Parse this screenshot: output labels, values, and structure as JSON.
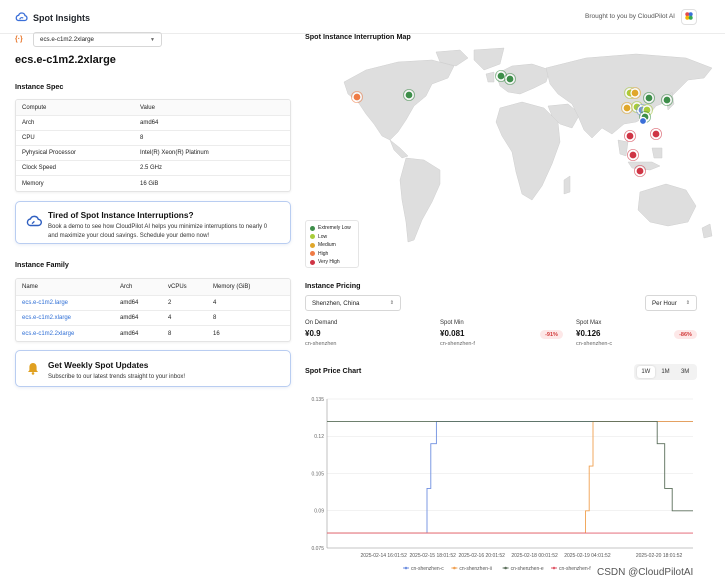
{
  "header": {
    "app_name": "Spot Insights",
    "brought_by": "Brought to you by CloudPilot AI",
    "brand_color": "#3b6fd8"
  },
  "instance_select": {
    "icon": "code-brackets-icon",
    "value": "ecs.e-c1m2.2xlarge"
  },
  "instance_title": "ecs.e-c1m2.2xlarge",
  "spec": {
    "title": "Instance Spec",
    "header": {
      "key": "Compute",
      "value": "Value"
    },
    "rows": [
      {
        "key": "Arch",
        "value": "amd64"
      },
      {
        "key": "CPU",
        "value": "8"
      },
      {
        "key": "Pyhysical Processor",
        "value": "Intel(R) Xeon(R) Platinum"
      },
      {
        "key": "Clock Speed",
        "value": "2.5 GHz"
      },
      {
        "key": "Memory",
        "value": "16 GiB"
      }
    ]
  },
  "promo_demo": {
    "icon": "cloud-gauge-icon",
    "title": "Tired of Spot Instance Interruptions?",
    "line1": "Book a demo to see how CloudPilot AI helps you minimize interruptions to nearly 0",
    "line2": "and maximize your cloud savings. Schedule your demo now!"
  },
  "family": {
    "title": "Instance Family",
    "columns": [
      "Name",
      "Arch",
      "vCPUs",
      "Memory (GiB)"
    ],
    "rows": [
      [
        "ecs.e-c1m2.large",
        "amd64",
        "2",
        "4"
      ],
      [
        "ecs.e-c1m2.xlarge",
        "amd64",
        "4",
        "8"
      ],
      [
        "ecs.e-c1m2.2xlarge",
        "amd64",
        "8",
        "16"
      ]
    ]
  },
  "promo_updates": {
    "icon": "bell-icon",
    "title": "Get Weekly Spot Updates",
    "desc": "Subscribe to our latest trends straight to your inbox!"
  },
  "map": {
    "title": "Spot Instance Interruption Map",
    "legend": [
      {
        "label": "Extremely Low",
        "color": "#3e8e4a"
      },
      {
        "label": "Low",
        "color": "#a8cc3a"
      },
      {
        "label": "Medium",
        "color": "#e0a72b"
      },
      {
        "label": "High",
        "color": "#ef7b45"
      },
      {
        "label": "Very High",
        "color": "#cf3545"
      }
    ]
  },
  "pricing": {
    "title": "Instance Pricing",
    "region": "Shenzhen, China",
    "unit": "Per Hour",
    "on_demand": {
      "label": "On Demand",
      "value": "¥0.9",
      "zone": "cn-shenzhen"
    },
    "spot_min": {
      "label": "Spot Min",
      "value": "¥0.081",
      "zone": "cn-shenzhen-f",
      "pct": "-91%"
    },
    "spot_max": {
      "label": "Spot Max",
      "value": "¥0.126",
      "zone": "cn-shenzhen-c",
      "pct": "-86%"
    }
  },
  "price_chart": {
    "title": "Spot Price Chart",
    "ranges": [
      "1W",
      "1M",
      "3M"
    ],
    "active_range": "1W"
  },
  "chart_data": {
    "type": "line",
    "title": "",
    "xlabel": "",
    "ylabel": "",
    "x_ticks": [
      "2025-02-14 16:01:52",
      "2025-02-15 18:01:52",
      "2025-02-16 20:01:52",
      "2025-02-18 00:01:52",
      "2025-02-19 04:01:52",
      "2025-02-20 18:01:52"
    ],
    "y_ticks": [
      0.075,
      0.09,
      0.105,
      0.12,
      0.135
    ],
    "ylim": [
      0.075,
      0.135
    ],
    "grid": true,
    "legend_position": "bottom",
    "series": [
      {
        "name": "cn-shenzhen-c",
        "color": "#6f8fe0",
        "points": [
          [
            "2025-02-13 10:00",
            0.081
          ],
          [
            "2025-02-15 15:00",
            0.081
          ],
          [
            "2025-02-15 15:00",
            0.099
          ],
          [
            "2025-02-15 17:00",
            0.099
          ],
          [
            "2025-02-15 17:00",
            0.117
          ],
          [
            "2025-02-15 20:00",
            0.117
          ],
          [
            "2025-02-15 20:00",
            0.126
          ],
          [
            "2025-02-21 12:00",
            0.126
          ]
        ]
      },
      {
        "name": "cn-shenzhen-ii",
        "color": "#f0a050",
        "points": [
          [
            "2025-02-13 10:00",
            0.081
          ],
          [
            "2025-02-19 03:00",
            0.081
          ],
          [
            "2025-02-19 03:00",
            0.09
          ],
          [
            "2025-02-19 05:00",
            0.09
          ],
          [
            "2025-02-19 05:00",
            0.108
          ],
          [
            "2025-02-19 07:00",
            0.108
          ],
          [
            "2025-02-19 07:00",
            0.126
          ],
          [
            "2025-02-21 12:00",
            0.126
          ]
        ]
      },
      {
        "name": "cn-shenzhen-e",
        "color": "#5a6e5a",
        "points": [
          [
            "2025-02-13 10:00",
            0.126
          ],
          [
            "2025-02-20 17:00",
            0.126
          ],
          [
            "2025-02-20 17:00",
            0.117
          ],
          [
            "2025-02-20 21:00",
            0.117
          ],
          [
            "2025-02-20 21:00",
            0.099
          ],
          [
            "2025-02-21 01:00",
            0.099
          ],
          [
            "2025-02-21 01:00",
            0.09
          ],
          [
            "2025-02-21 12:00",
            0.09
          ]
        ]
      },
      {
        "name": "cn-shenzhen-f",
        "color": "#e05a6a",
        "points": [
          [
            "2025-02-13 10:00",
            0.081
          ],
          [
            "2025-02-21 12:00",
            0.081
          ]
        ]
      }
    ]
  },
  "watermark": "CSDN @CloudPilotAI"
}
